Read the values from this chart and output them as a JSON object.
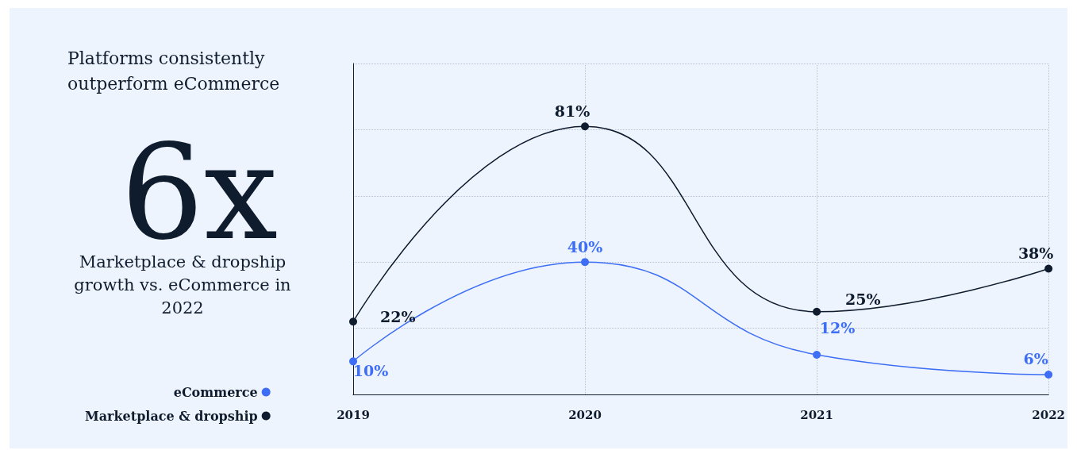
{
  "chart_data": {
    "type": "line",
    "title": "Platforms consistently outperform eCommerce",
    "annotations": [
      "6x",
      "Marketplace & dropship growth vs. eCommerce in 2022"
    ],
    "categories": [
      "2019",
      "2020",
      "2021",
      "2022"
    ],
    "series": [
      {
        "name": "eCommerce",
        "color": "#3d6ef5",
        "values": [
          10,
          40,
          12,
          6
        ],
        "value_labels": [
          "10%",
          "40%",
          "12%",
          "6%"
        ]
      },
      {
        "name": "Marketplace & dropship",
        "color": "#0f1c2e",
        "values": [
          22,
          81,
          25,
          38
        ],
        "value_labels": [
          "22%",
          "81%",
          "25%",
          "38%"
        ]
      }
    ],
    "tick_labels": "x",
    "grid": true,
    "legend": "bottom left",
    "marker": "circle",
    "line_style": "solid"
  }
}
